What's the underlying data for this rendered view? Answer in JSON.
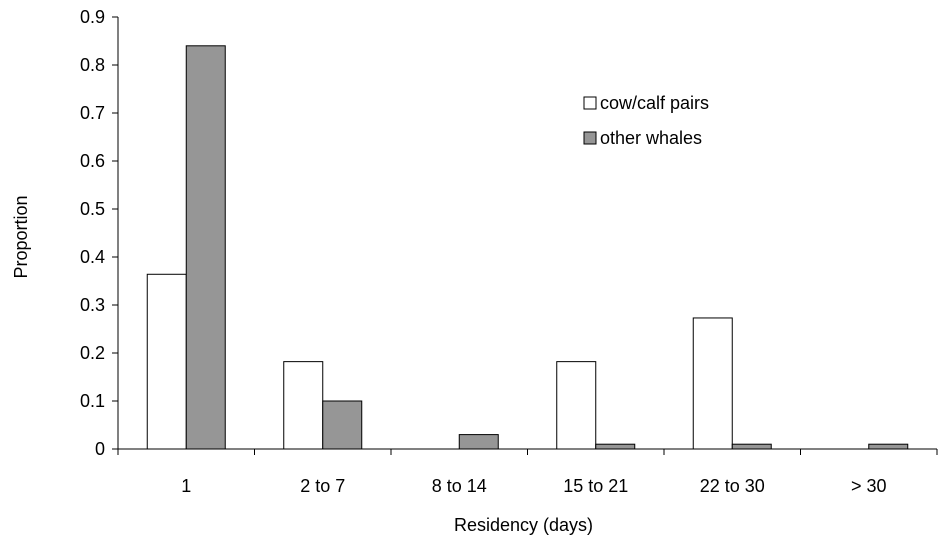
{
  "chart_data": {
    "type": "bar",
    "title": "",
    "xlabel": "Residency (days)",
    "ylabel": "Proportion",
    "ylim": [
      0,
      0.9
    ],
    "yticks": [
      "0",
      "0.1",
      "0.2",
      "0.3",
      "0.4",
      "0.5",
      "0.6",
      "0.7",
      "0.8",
      "0.9"
    ],
    "categories": [
      "1",
      "2 to 7",
      "8 to 14",
      "15 to 21",
      "22 to 30",
      "> 30"
    ],
    "series": [
      {
        "name": "cow/calf pairs",
        "color": "#ffffff",
        "values": [
          0.364,
          0.182,
          0,
          0.182,
          0.273,
          0
        ]
      },
      {
        "name": "other whales",
        "color": "#969696",
        "values": [
          0.84,
          0.1,
          0.03,
          0.01,
          0.01,
          0.01
        ]
      }
    ],
    "legend_position": "top-right",
    "grid": false
  }
}
